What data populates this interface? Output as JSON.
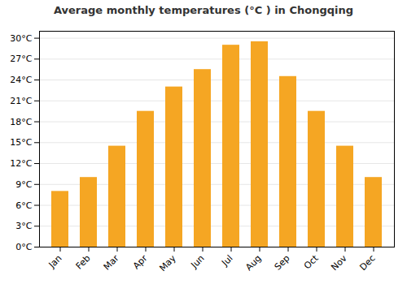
{
  "chart_data": {
    "type": "bar",
    "title": "Average monthly temperatures (°C ) in Chongqing",
    "categories": [
      "Jan",
      "Feb",
      "Mar",
      "Apr",
      "May",
      "Jun",
      "Jul",
      "Aug",
      "Sep",
      "Oct",
      "Nov",
      "Dec"
    ],
    "values": [
      8.0,
      10.0,
      14.5,
      19.5,
      23.0,
      25.5,
      29.0,
      29.5,
      24.5,
      19.5,
      14.5,
      10.0
    ],
    "color": "#F5A623",
    "ylim": [
      0,
      31
    ],
    "yticks": [
      {
        "value": 0,
        "label": "0°C"
      },
      {
        "value": 3,
        "label": "3°C"
      },
      {
        "value": 6,
        "label": "6°C"
      },
      {
        "value": 9,
        "label": "9°C"
      },
      {
        "value": 12,
        "label": "12°C"
      },
      {
        "value": 15,
        "label": "15°C"
      },
      {
        "value": 18,
        "label": "18°C"
      },
      {
        "value": 21,
        "label": "21°C"
      },
      {
        "value": 24,
        "label": "24°C"
      },
      {
        "value": 27,
        "label": "27°C"
      },
      {
        "value": 30,
        "label": "30°C"
      }
    ],
    "grid": true
  }
}
